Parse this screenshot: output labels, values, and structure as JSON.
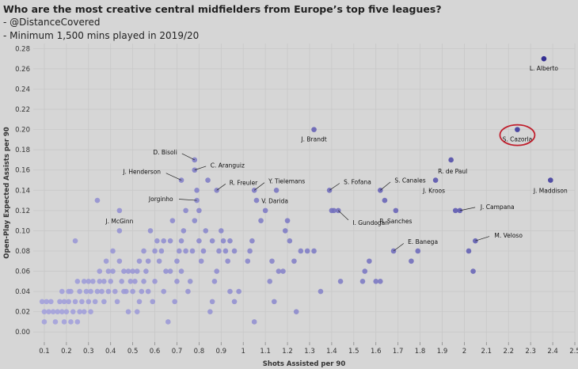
{
  "header": {
    "title": "Who are the most creative central midfielders from Europe’s top five leagues?",
    "line2": "- @DistanceCovered",
    "line3": "- Minimum 1,500 mins played in 2019/20"
  },
  "chart_data": {
    "type": "scatter",
    "xlabel": "Shots Assisted per 90",
    "ylabel": "Open-Play Expected Assists per 90",
    "xlim": [
      0.05,
      2.5
    ],
    "ylim": [
      -0.01,
      0.285
    ],
    "xticks": [
      0.1,
      0.2,
      0.3,
      0.4,
      0.5,
      0.6,
      0.7,
      0.8,
      0.9,
      1.0,
      1.1,
      1.2,
      1.3,
      1.4,
      1.5,
      1.6,
      1.7,
      1.8,
      1.9,
      2.0,
      2.1,
      2.2,
      2.3,
      2.4,
      2.5
    ],
    "yticks": [
      0.0,
      0.02,
      0.04,
      0.06,
      0.08,
      0.1,
      0.12,
      0.14,
      0.16,
      0.18,
      0.2,
      0.22,
      0.24,
      0.26,
      0.28
    ],
    "highlight": "S. Cazorla",
    "colors": {
      "low": "#a5a3dc",
      "high": "#1f1a8a",
      "highlight_ring": "#c0202e",
      "grid": "#c8c8c8"
    },
    "labeled_points": [
      {
        "name": "L. Alberto",
        "x": 2.36,
        "y": 0.27
      },
      {
        "name": "S. Cazorla",
        "x": 2.24,
        "y": 0.2
      },
      {
        "name": "J. Brandt",
        "x": 1.32,
        "y": 0.2
      },
      {
        "name": "D. Bisoli",
        "x": 0.78,
        "y": 0.17
      },
      {
        "name": "C. Aranguiz",
        "x": 0.78,
        "y": 0.16
      },
      {
        "name": "J. Henderson",
        "x": 0.72,
        "y": 0.15
      },
      {
        "name": "R. de Paul",
        "x": 1.94,
        "y": 0.17
      },
      {
        "name": "J. Maddison",
        "x": 2.39,
        "y": 0.15
      },
      {
        "name": "J. Kroos",
        "x": 1.87,
        "y": 0.15
      },
      {
        "name": "R. Freuler",
        "x": 0.88,
        "y": 0.14
      },
      {
        "name": "Y. Tielemans",
        "x": 1.05,
        "y": 0.14
      },
      {
        "name": "V. Darida",
        "x": 1.15,
        "y": 0.14
      },
      {
        "name": "S. Fofana",
        "x": 1.39,
        "y": 0.14
      },
      {
        "name": "S. Canales",
        "x": 1.62,
        "y": 0.14
      },
      {
        "name": "Jorginho",
        "x": 0.79,
        "y": 0.13
      },
      {
        "name": "J. McGinn",
        "x": 0.44,
        "y": 0.12
      },
      {
        "name": "R. Sanches",
        "x": 1.69,
        "y": 0.12
      },
      {
        "name": "I. Gundogan",
        "x": 1.43,
        "y": 0.12
      },
      {
        "name": "J. Campana",
        "x": 1.98,
        "y": 0.12
      },
      {
        "name": "E. Banega",
        "x": 1.68,
        "y": 0.08
      },
      {
        "name": "M. Veloso",
        "x": 2.05,
        "y": 0.09
      }
    ],
    "points": [
      [
        2.36,
        0.27
      ],
      [
        2.24,
        0.2
      ],
      [
        1.32,
        0.2
      ],
      [
        0.78,
        0.17
      ],
      [
        0.78,
        0.16
      ],
      [
        0.72,
        0.15
      ],
      [
        1.94,
        0.17
      ],
      [
        2.39,
        0.15
      ],
      [
        1.87,
        0.15
      ],
      [
        0.88,
        0.14
      ],
      [
        1.05,
        0.14
      ],
      [
        1.15,
        0.14
      ],
      [
        1.39,
        0.14
      ],
      [
        1.62,
        0.14
      ],
      [
        0.79,
        0.13
      ],
      [
        0.44,
        0.12
      ],
      [
        1.69,
        0.12
      ],
      [
        1.43,
        0.12
      ],
      [
        1.98,
        0.12
      ],
      [
        1.68,
        0.08
      ],
      [
        2.05,
        0.09
      ],
      [
        1.96,
        0.12
      ],
      [
        2.02,
        0.08
      ],
      [
        2.04,
        0.06
      ],
      [
        1.79,
        0.08
      ],
      [
        1.76,
        0.07
      ],
      [
        1.64,
        0.13
      ],
      [
        1.4,
        0.12
      ],
      [
        1.41,
        0.12
      ],
      [
        1.55,
        0.06
      ],
      [
        1.57,
        0.07
      ],
      [
        1.62,
        0.05
      ],
      [
        1.6,
        0.05
      ],
      [
        1.54,
        0.05
      ],
      [
        1.44,
        0.05
      ],
      [
        1.35,
        0.04
      ],
      [
        1.29,
        0.08
      ],
      [
        1.26,
        0.08
      ],
      [
        1.32,
        0.08
      ],
      [
        1.24,
        0.02
      ],
      [
        1.23,
        0.07
      ],
      [
        1.21,
        0.09
      ],
      [
        1.2,
        0.11
      ],
      [
        1.19,
        0.1
      ],
      [
        1.16,
        0.06
      ],
      [
        1.18,
        0.06
      ],
      [
        1.13,
        0.07
      ],
      [
        1.12,
        0.05
      ],
      [
        1.1,
        0.12
      ],
      [
        1.06,
        0.13
      ],
      [
        1.04,
        0.09
      ],
      [
        1.03,
        0.08
      ],
      [
        1.02,
        0.07
      ],
      [
        1.05,
        0.01
      ],
      [
        0.98,
        0.04
      ],
      [
        0.96,
        0.03
      ],
      [
        0.94,
        0.04
      ],
      [
        0.93,
        0.07
      ],
      [
        0.92,
        0.08
      ],
      [
        0.91,
        0.09
      ],
      [
        0.9,
        0.1
      ],
      [
        0.89,
        0.08
      ],
      [
        0.88,
        0.06
      ],
      [
        0.87,
        0.05
      ],
      [
        0.86,
        0.03
      ],
      [
        0.85,
        0.02
      ],
      [
        0.84,
        0.15
      ],
      [
        0.83,
        0.1
      ],
      [
        0.82,
        0.08
      ],
      [
        0.81,
        0.07
      ],
      [
        0.8,
        0.12
      ],
      [
        0.8,
        0.09
      ],
      [
        0.79,
        0.14
      ],
      [
        0.78,
        0.11
      ],
      [
        0.77,
        0.08
      ],
      [
        0.76,
        0.05
      ],
      [
        0.75,
        0.04
      ],
      [
        0.74,
        0.12
      ],
      [
        0.73,
        0.1
      ],
      [
        0.72,
        0.09
      ],
      [
        0.71,
        0.08
      ],
      [
        0.7,
        0.07
      ],
      [
        0.7,
        0.05
      ],
      [
        0.69,
        0.03
      ],
      [
        0.68,
        0.11
      ],
      [
        0.67,
        0.09
      ],
      [
        0.66,
        0.01
      ],
      [
        0.65,
        0.06
      ],
      [
        0.64,
        0.04
      ],
      [
        0.63,
        0.08
      ],
      [
        0.62,
        0.07
      ],
      [
        0.61,
        0.09
      ],
      [
        0.6,
        0.05
      ],
      [
        0.59,
        0.03
      ],
      [
        0.58,
        0.1
      ],
      [
        0.57,
        0.07
      ],
      [
        0.56,
        0.06
      ],
      [
        0.55,
        0.05
      ],
      [
        0.55,
        0.08
      ],
      [
        0.54,
        0.04
      ],
      [
        0.53,
        0.03
      ],
      [
        0.52,
        0.06
      ],
      [
        0.52,
        0.02
      ],
      [
        0.51,
        0.05
      ],
      [
        0.5,
        0.06
      ],
      [
        0.5,
        0.04
      ],
      [
        0.49,
        0.05
      ],
      [
        0.48,
        0.02
      ],
      [
        0.47,
        0.04
      ],
      [
        0.46,
        0.06
      ],
      [
        0.45,
        0.05
      ],
      [
        0.44,
        0.07
      ],
      [
        0.44,
        0.1
      ],
      [
        0.43,
        0.03
      ],
      [
        0.42,
        0.04
      ],
      [
        0.41,
        0.06
      ],
      [
        0.4,
        0.05
      ],
      [
        0.39,
        0.04
      ],
      [
        0.38,
        0.07
      ],
      [
        0.37,
        0.03
      ],
      [
        0.36,
        0.04
      ],
      [
        0.35,
        0.06
      ],
      [
        0.34,
        0.13
      ],
      [
        0.34,
        0.04
      ],
      [
        0.33,
        0.03
      ],
      [
        0.32,
        0.05
      ],
      [
        0.31,
        0.04
      ],
      [
        0.31,
        0.02
      ],
      [
        0.3,
        0.03
      ],
      [
        0.29,
        0.04
      ],
      [
        0.28,
        0.05
      ],
      [
        0.27,
        0.03
      ],
      [
        0.26,
        0.04
      ],
      [
        0.26,
        0.02
      ],
      [
        0.25,
        0.05
      ],
      [
        0.24,
        0.09
      ],
      [
        0.24,
        0.03
      ],
      [
        0.23,
        0.02
      ],
      [
        0.22,
        0.01
      ],
      [
        0.22,
        0.04
      ],
      [
        0.21,
        0.03
      ],
      [
        0.2,
        0.02
      ],
      [
        0.19,
        0.01
      ],
      [
        0.19,
        0.03
      ],
      [
        0.18,
        0.02
      ],
      [
        0.17,
        0.03
      ],
      [
        0.16,
        0.02
      ],
      [
        0.15,
        0.01
      ],
      [
        0.14,
        0.02
      ],
      [
        0.13,
        0.03
      ],
      [
        0.12,
        0.02
      ],
      [
        0.11,
        0.03
      ],
      [
        0.1,
        0.01
      ],
      [
        0.1,
        0.02
      ],
      [
        0.09,
        0.03
      ],
      [
        0.35,
        0.05
      ],
      [
        0.37,
        0.05
      ],
      [
        0.39,
        0.06
      ],
      [
        0.41,
        0.08
      ],
      [
        0.46,
        0.04
      ],
      [
        0.48,
        0.06
      ],
      [
        0.53,
        0.07
      ],
      [
        0.57,
        0.04
      ],
      [
        0.6,
        0.08
      ],
      [
        0.64,
        0.09
      ],
      [
        0.67,
        0.06
      ],
      [
        0.72,
        0.06
      ],
      [
        0.74,
        0.08
      ],
      [
        0.86,
        0.09
      ],
      [
        0.94,
        0.09
      ],
      [
        0.96,
        0.08
      ],
      [
        1.08,
        0.11
      ],
      [
        1.14,
        0.03
      ],
      [
        0.3,
        0.05
      ],
      [
        0.28,
        0.02
      ],
      [
        0.25,
        0.01
      ],
      [
        0.21,
        0.04
      ],
      [
        0.18,
        0.04
      ]
    ]
  }
}
